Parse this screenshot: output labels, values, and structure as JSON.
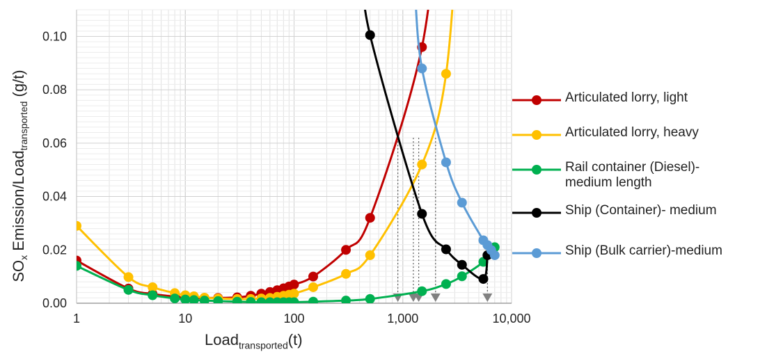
{
  "chart_data": {
    "type": "line",
    "xlabel_main": "Load",
    "xlabel_sub": "transported",
    "xlabel_tail": "(t)",
    "ylabel_main": "SO",
    "ylabel_sub1": "x",
    "ylabel_mid": " Emission/Load",
    "ylabel_sub2": "transported",
    "ylabel_tail": " (g/t)",
    "x_scale": "log",
    "xlim": [
      1,
      10000
    ],
    "ylim": [
      0,
      0.11
    ],
    "x_ticks": [
      1,
      10,
      100,
      1000,
      10000
    ],
    "x_tick_labels": [
      "1",
      "10",
      "100",
      "1,000",
      "10,000"
    ],
    "y_ticks": [
      0,
      0.02,
      0.04,
      0.06,
      0.08,
      0.1
    ],
    "y_tick_labels": [
      "0.00",
      "0.02",
      "0.04",
      "0.06",
      "0.08",
      "0.10"
    ],
    "grid": true,
    "legend_position": "right",
    "series": [
      {
        "name": "Articulated lorry, light",
        "color": "#c00000",
        "x": [
          1,
          3,
          5,
          8,
          10,
          12,
          15,
          20,
          30,
          40,
          50,
          60,
          70,
          80,
          90,
          100,
          150,
          300,
          500,
          1500
        ],
        "y": [
          0.016,
          0.0055,
          0.0035,
          0.0025,
          0.0022,
          0.002,
          0.002,
          0.002,
          0.0022,
          0.0028,
          0.0036,
          0.0042,
          0.0049,
          0.0056,
          0.0063,
          0.007,
          0.01,
          0.02,
          0.032,
          0.096
        ]
      },
      {
        "name": "Articulated lorry, heavy",
        "color": "#ffc000",
        "x": [
          1,
          3,
          5,
          8,
          10,
          12,
          15,
          20,
          30,
          40,
          50,
          60,
          70,
          80,
          90,
          100,
          150,
          300,
          500,
          1500,
          2500
        ],
        "y": [
          0.029,
          0.0098,
          0.006,
          0.0038,
          0.003,
          0.0026,
          0.0021,
          0.0018,
          0.0016,
          0.0016,
          0.0018,
          0.002,
          0.0024,
          0.0028,
          0.0032,
          0.0036,
          0.006,
          0.011,
          0.018,
          0.052,
          0.086
        ]
      },
      {
        "name": "Rail container (Diesel)- medium length",
        "color": "#00b050",
        "x": [
          1,
          3,
          5,
          8,
          10,
          12,
          15,
          20,
          30,
          40,
          50,
          60,
          70,
          80,
          90,
          100,
          150,
          300,
          500,
          1500,
          2500,
          3500,
          5500,
          7000
        ],
        "y": [
          0.014,
          0.005,
          0.003,
          0.0018,
          0.0014,
          0.0012,
          0.001,
          0.0008,
          0.0006,
          0.0005,
          0.0004,
          0.0004,
          0.0004,
          0.0004,
          0.0004,
          0.0004,
          0.0006,
          0.001,
          0.0016,
          0.0045,
          0.0072,
          0.0101,
          0.0155,
          0.021
        ]
      },
      {
        "name": "Ship (Container)- medium",
        "color": "#000000",
        "x": [
          500,
          1500,
          2500,
          3500,
          5500,
          6000
        ],
        "y": [
          0.1005,
          0.0335,
          0.0202,
          0.0144,
          0.0091,
          0.018
        ]
      },
      {
        "name": "Ship (Bulk carrier)-medium",
        "color": "#5b9bd5",
        "x": [
          1500,
          2500,
          3500,
          5500,
          6000,
          6500,
          7000
        ],
        "y": [
          0.088,
          0.0528,
          0.0377,
          0.0236,
          0.0218,
          0.0199,
          0.018
        ]
      }
    ],
    "annotation_markers_x": [
      900,
      1250,
      1400,
      2000,
      6000
    ]
  }
}
